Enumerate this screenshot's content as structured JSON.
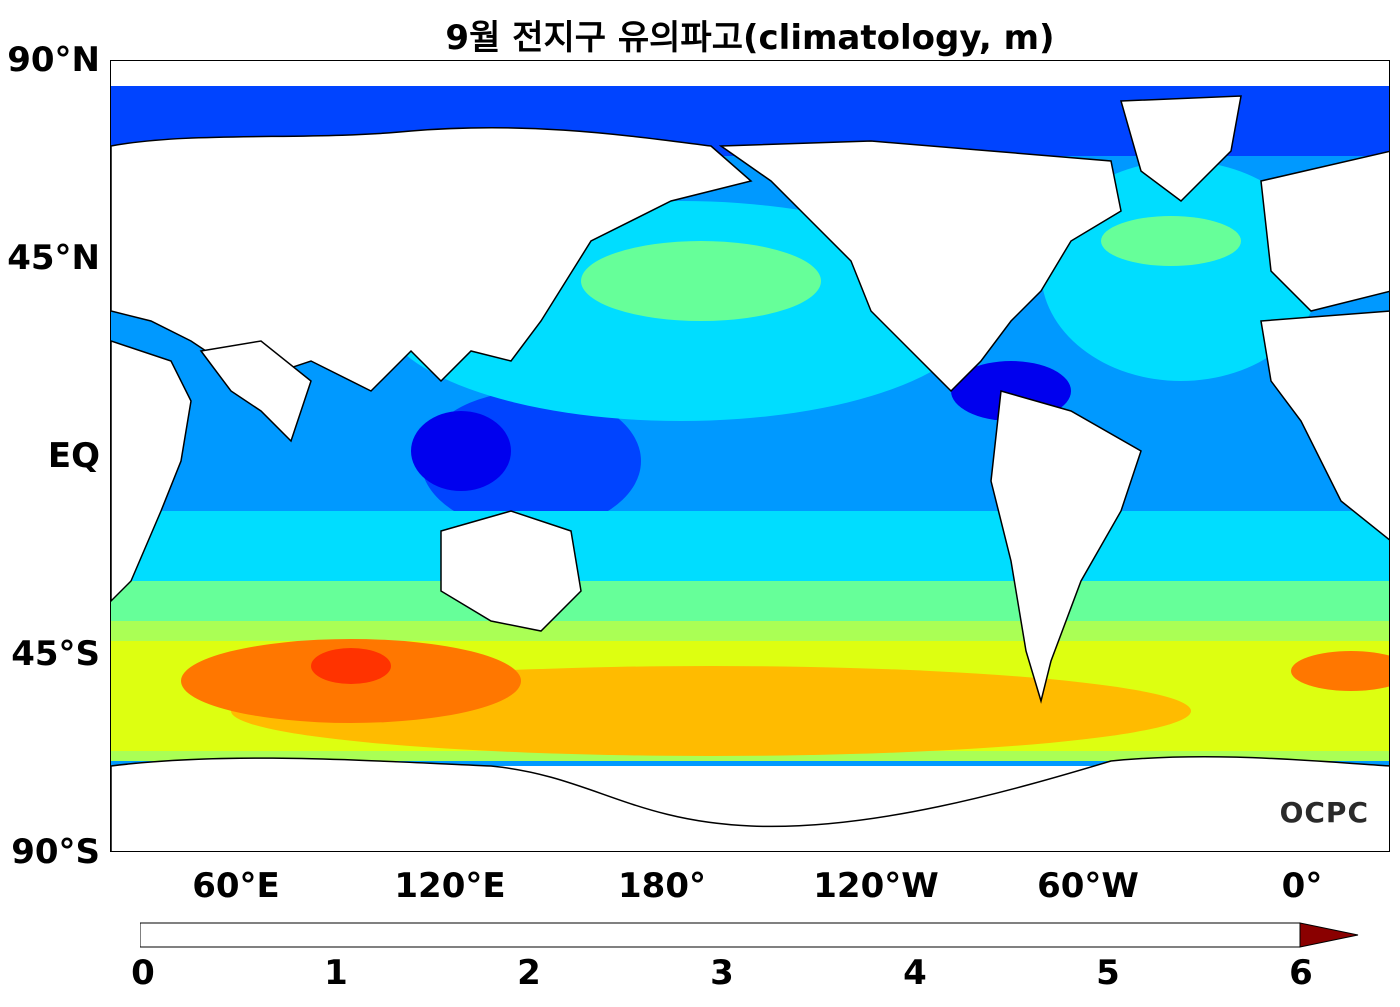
{
  "title": "9월 전지구 유의파고(climatology, m)",
  "watermark": "OCPC",
  "lat_labels": [
    "90°N",
    "45°N",
    "EQ",
    "45°S",
    "90°S"
  ],
  "lon_labels": [
    "60°E",
    "120°E",
    "180°",
    "120°W",
    "60°W",
    "0°"
  ],
  "colorbar": {
    "ticks": [
      "0",
      "1",
      "2",
      "3",
      "4",
      "5",
      "6"
    ],
    "colors": [
      "#0000b4",
      "#0000ee",
      "#0044ff",
      "#0099ff",
      "#00ddff",
      "#66ff99",
      "#aaff55",
      "#ddff11",
      "#ffbb00",
      "#ff7700",
      "#ff3300",
      "#cc0000",
      "#8a0000"
    ]
  }
}
